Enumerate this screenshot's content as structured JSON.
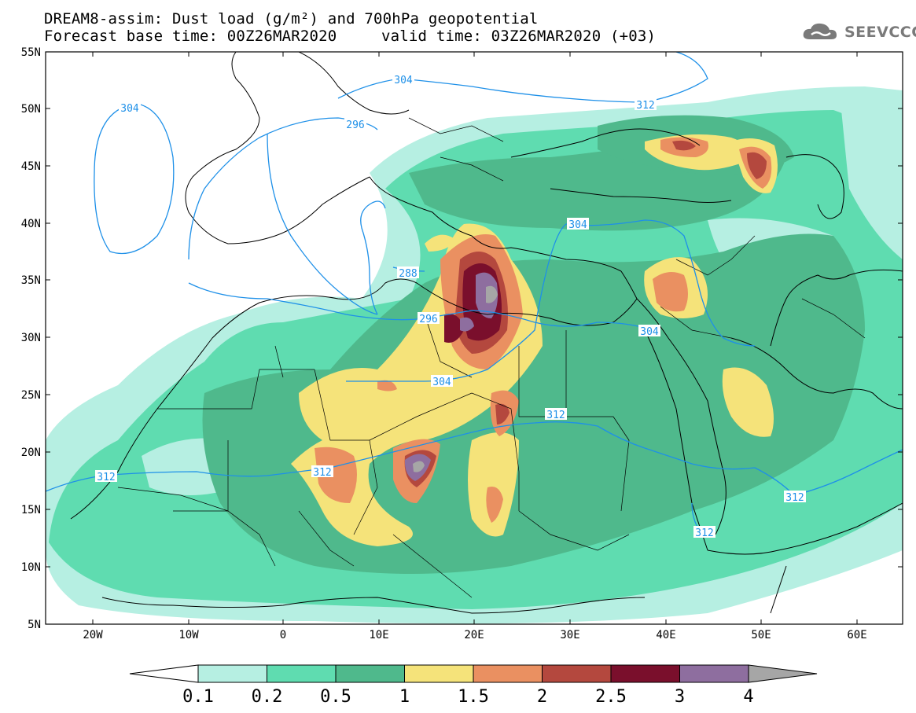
{
  "header": {
    "title_line1": "DREAM8-assim: Dust load (g/m²) and 700hPa geopotential",
    "base_time": "Forecast base time: 00Z26MAR2020",
    "valid_time": "valid time: 03Z26MAR2020 (+03)"
  },
  "logo": {
    "text": "SEEVCCC",
    "icon": "cloud-icon"
  },
  "map": {
    "lat_labels": [
      "55N",
      "50N",
      "45N",
      "40N",
      "35N",
      "30N",
      "25N",
      "20N",
      "15N",
      "10N",
      "5N"
    ],
    "lon_labels": [
      "20W",
      "10W",
      "0",
      "10E",
      "20E",
      "30E",
      "40E",
      "50E",
      "60E"
    ],
    "contour_labels": [
      "304",
      "304",
      "312",
      "296",
      "304",
      "288",
      "296",
      "304",
      "304",
      "312",
      "312",
      "312",
      "312",
      "312"
    ]
  },
  "colorbar": {
    "labels": [
      "0.1",
      "0.2",
      "0.5",
      "1",
      "1.5",
      "2",
      "2.5",
      "3",
      "4"
    ],
    "colors": [
      "#ffffff",
      "#b6efe2",
      "#5fdcb0",
      "#4fb98c",
      "#f5e37a",
      "#ea9061",
      "#b4483e",
      "#7a0f2c",
      "#8e6e9f",
      "#a6a6a6"
    ]
  },
  "colors": {
    "contour": "#1e90e8",
    "land_line": "#000000"
  }
}
